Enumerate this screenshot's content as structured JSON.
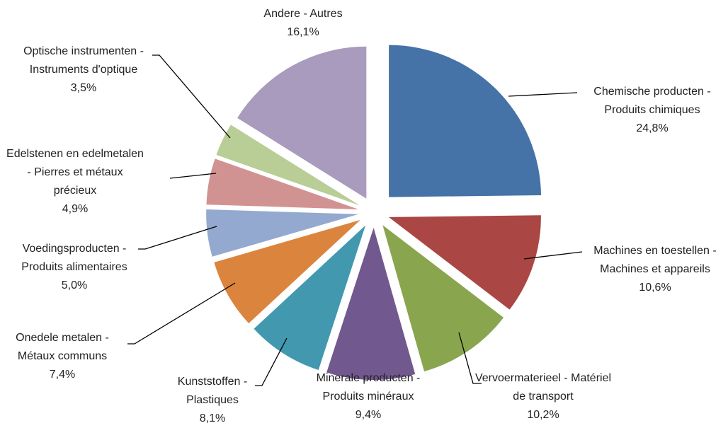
{
  "chart_data": {
    "type": "pie",
    "categories": [
      "Chemische producten - Produits chimiques",
      "Machines en toestellen - Machines et appareils",
      "Vervoermaterieel - Matériel de transport",
      "Minerale producten - Produits minéraux",
      "Kunststoffen - Plastiques",
      "Onedele metalen - Métaux communs",
      "Voedingsproducten - Produits alimentaires",
      "Edelstenen en edelmetalen - Pierres et métaux précieux",
      "Optische instrumenten - Instruments d'optique",
      "Andere - Autres"
    ],
    "values": [
      24.8,
      10.6,
      10.2,
      9.4,
      8.1,
      7.4,
      5.0,
      4.9,
      3.5,
      16.1
    ],
    "value_labels": [
      "24,8%",
      "10,6%",
      "10,2%",
      "9,4%",
      "8,1%",
      "7,4%",
      "5,0%",
      "4,9%",
      "3,5%",
      "16,1%"
    ],
    "colors": [
      "#4572a7",
      "#aa4643",
      "#89a54e",
      "#71588f",
      "#4198af",
      "#db843d",
      "#93a9cf",
      "#d19392",
      "#b9cd96",
      "#a99bbd"
    ]
  }
}
